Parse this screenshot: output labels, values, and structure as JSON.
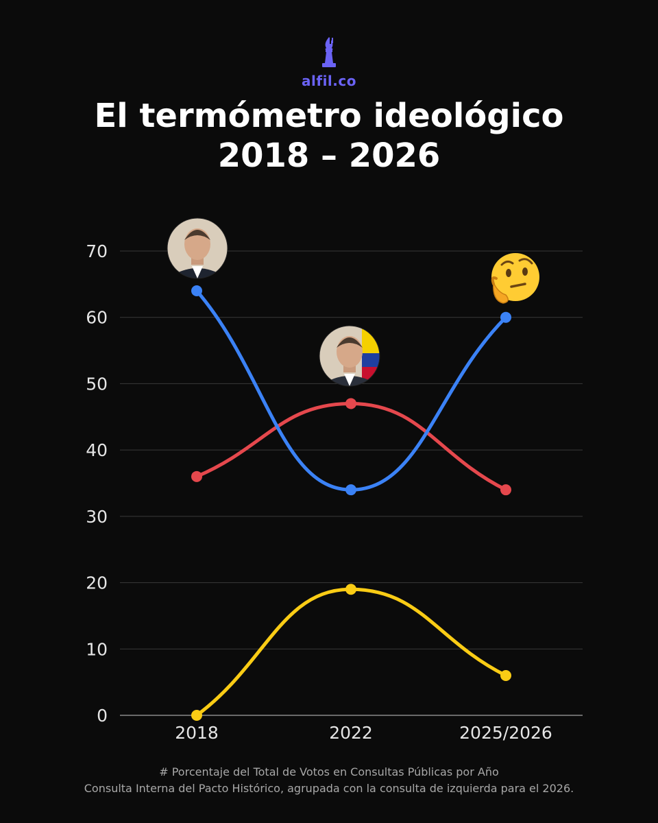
{
  "brand": {
    "name": "alfil.co",
    "color": "#6b63f5"
  },
  "title": {
    "line1": "El termómetro ideológico",
    "line2": "2018 – 2026"
  },
  "chart_data": {
    "type": "line",
    "categories": [
      "2018",
      "2022",
      "2025/2026"
    ],
    "ylim": [
      0,
      70
    ],
    "yticks": [
      "0",
      "10",
      "20",
      "30",
      "40",
      "50",
      "60",
      "70"
    ],
    "grid": true,
    "smooth": true,
    "series": [
      {
        "color": "#3b82f6",
        "values": [
          64,
          34,
          60
        ]
      },
      {
        "color": "#e5484d",
        "values": [
          36,
          47,
          34
        ]
      },
      {
        "color": "#facc15",
        "values": [
          0,
          19,
          6
        ]
      }
    ],
    "annotations": [
      {
        "type": "portrait",
        "icon": "portrait-2018-icon",
        "category": "2018"
      },
      {
        "type": "portrait",
        "icon": "portrait-2022-icon",
        "category": "2022"
      },
      {
        "type": "emoji",
        "icon": "thinking-face-icon",
        "category": "2025/2026"
      }
    ]
  },
  "footnote": {
    "line1": "# Porcentaje del Total de Votos en Consultas Públicas por Año",
    "line2": "Consulta Interna del Pacto Histórico, agrupada con la consulta de izquierda para el 2026."
  }
}
